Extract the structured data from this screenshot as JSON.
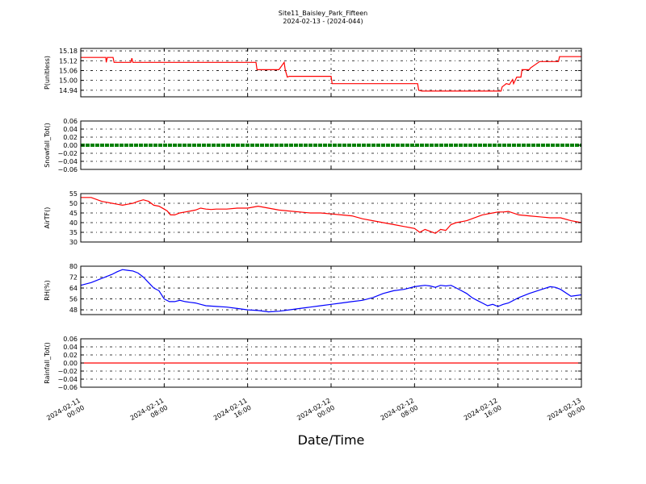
{
  "title_line1": "Site11_Baisley_Park_Fifteen",
  "title_line2": "2024-02-13 - (2024-044)",
  "xlabel": "Date/Time",
  "x_ticks": [
    [
      "2024-02-11",
      "00:00"
    ],
    [
      "2024-02-11",
      "08:00"
    ],
    [
      "2024-02-11",
      "16:00"
    ],
    [
      "2024-02-12",
      "00:00"
    ],
    [
      "2024-02-12",
      "08:00"
    ],
    [
      "2024-02-12",
      "16:00"
    ],
    [
      "2024-02-13",
      "00:00"
    ]
  ],
  "colors": {
    "red": "#ff0000",
    "green": "#008000",
    "blue": "#0000ff"
  },
  "chart_data": [
    {
      "type": "line",
      "ylabel": "P(unitless)",
      "ylim": [
        14.9,
        15.195
      ],
      "yticks": [
        "15.18",
        "15.12",
        "15.06",
        "15.00",
        "14.94"
      ],
      "ytick_values": [
        15.18,
        15.12,
        15.06,
        15.0,
        14.94
      ],
      "grid": true,
      "series": [
        {
          "color": "#ff0000",
          "x": [
            0,
            2.4,
            2.45,
            2.55,
            2.6,
            3.1,
            3.2,
            3.3,
            3.35,
            4.8,
            4.9,
            5.0,
            5.1,
            16.8,
            16.9,
            19.0,
            19.5,
            19.6,
            19.8,
            20.0,
            20.1,
            24.0,
            24.1,
            32.3,
            32.4,
            32.7,
            40.3,
            40.4,
            40.8,
            41.1,
            41.4,
            41.5,
            41.8,
            41.9,
            42.2,
            42.3,
            43.0,
            43.1,
            44.0,
            44.1,
            45.8,
            45.9,
            47.0,
            47.1,
            48.0
          ],
          "y": [
            15.14,
            15.14,
            15.11,
            15.14,
            15.14,
            15.14,
            15.11,
            15.11,
            15.11,
            15.11,
            15.135,
            15.11,
            15.11,
            15.11,
            15.065,
            15.065,
            15.11,
            15.065,
            15.02,
            15.025,
            15.025,
            15.025,
            14.98,
            14.98,
            14.94,
            14.935,
            14.935,
            14.96,
            14.98,
            14.975,
            15.005,
            14.98,
            15.02,
            15.02,
            15.02,
            15.065,
            15.065,
            15.075,
            15.115,
            15.115,
            15.115,
            15.145,
            15.145,
            15.145,
            15.145
          ]
        }
      ]
    },
    {
      "type": "line",
      "ylabel": "Snowfall_Tot()",
      "ylim": [
        -0.06,
        0.06
      ],
      "yticks": [
        "0.06",
        "0.04",
        "0.02",
        "0.00",
        "−0.02",
        "−0.04",
        "−0.06"
      ],
      "ytick_values": [
        0.06,
        0.04,
        0.02,
        0.0,
        -0.02,
        -0.04,
        -0.06
      ],
      "grid": true,
      "series": [
        {
          "color": "#008000",
          "x": [
            0,
            48
          ],
          "y": [
            0,
            0
          ]
        }
      ]
    },
    {
      "type": "line",
      "ylabel": "AirTF()",
      "ylim": [
        30,
        55
      ],
      "yticks": [
        "55",
        "50",
        "45",
        "40",
        "35",
        "30"
      ],
      "ytick_values": [
        55,
        50,
        45,
        40,
        35,
        30
      ],
      "grid": true,
      "series": [
        {
          "color": "#ff0000",
          "x": [
            0,
            1,
            2,
            3,
            3.5,
            4,
            4.5,
            5,
            5.5,
            6,
            6.5,
            7,
            7.5,
            8,
            8.3,
            8.6,
            9,
            9.5,
            10,
            10.5,
            11,
            11.5,
            12,
            12.5,
            13,
            14,
            15,
            16,
            17,
            18,
            19,
            20,
            21,
            22,
            23,
            24,
            25,
            26,
            27,
            28,
            29,
            30,
            31,
            32,
            32.5,
            33,
            33.5,
            34,
            34.5,
            35,
            35.5,
            36,
            36.5,
            37,
            37.5,
            38,
            38.5,
            39,
            39.5,
            40,
            40.5,
            41,
            42,
            43,
            44,
            45,
            46,
            47,
            48
          ],
          "y": [
            53,
            53,
            51,
            50,
            49.5,
            49,
            49.5,
            50,
            51,
            51.8,
            51,
            49,
            48.5,
            47,
            46,
            44,
            44,
            45,
            45.5,
            46,
            46.5,
            47.5,
            47,
            46.8,
            47,
            47,
            47.5,
            47.5,
            48.5,
            47.5,
            46.5,
            46,
            45.5,
            45,
            45,
            44.5,
            44,
            43.5,
            42,
            41,
            40,
            39,
            38,
            37,
            35,
            36.5,
            35.5,
            34.5,
            36.5,
            36,
            39,
            40,
            40.5,
            41,
            42,
            43,
            44,
            44.5,
            45,
            45.5,
            45.5,
            45.8,
            44,
            43.5,
            43,
            42.5,
            42.5,
            41,
            40
          ]
        }
      ]
    },
    {
      "type": "line",
      "ylabel": "RH(%)",
      "ylim": [
        44.5,
        80
      ],
      "yticks": [
        "80",
        "72",
        "64",
        "56",
        "48"
      ],
      "ytick_values": [
        80,
        72,
        64,
        56,
        48
      ],
      "grid": true,
      "series": [
        {
          "color": "#0000ff",
          "x": [
            0,
            1,
            2,
            3,
            3.5,
            4,
            4.5,
            5,
            5.5,
            6,
            6.5,
            7,
            7.5,
            8,
            8.5,
            9,
            9.5,
            10,
            10.5,
            11,
            11.5,
            12,
            13,
            14,
            15,
            16,
            17,
            18,
            19,
            20,
            21,
            22,
            23,
            24,
            25,
            26,
            27,
            28,
            29,
            30,
            31,
            32,
            32.5,
            33,
            33.5,
            34,
            34.5,
            35,
            35.5,
            36,
            36.5,
            37,
            37.5,
            38,
            38.5,
            39,
            39.5,
            40,
            40.5,
            41,
            42,
            43,
            44,
            45,
            45.5,
            46,
            47,
            48
          ],
          "y": [
            66,
            68,
            71,
            74,
            76,
            77.5,
            77,
            76.5,
            75,
            72,
            68,
            64,
            62,
            56,
            54,
            54,
            55,
            54,
            53.5,
            53,
            52,
            51,
            50.5,
            50,
            49,
            48,
            47.5,
            46.5,
            47,
            48,
            49,
            50,
            51,
            52,
            53,
            54,
            55,
            57,
            60,
            62,
            63,
            65,
            65.5,
            66,
            65.5,
            64.5,
            66,
            65.5,
            66,
            64,
            62,
            60,
            57,
            55,
            53,
            51,
            52,
            50.5,
            52,
            53,
            57,
            60,
            62.5,
            65,
            64.5,
            63,
            58,
            59
          ]
        }
      ]
    },
    {
      "type": "line",
      "ylabel": "Rainfall_Tot()",
      "ylim": [
        -0.06,
        0.06
      ],
      "yticks": [
        "0.06",
        "0.04",
        "0.02",
        "0.00",
        "−0.02",
        "−0.04",
        "−0.06"
      ],
      "ytick_values": [
        0.06,
        0.04,
        0.02,
        0.0,
        -0.02,
        -0.04,
        -0.06
      ],
      "grid": true,
      "series": [
        {
          "color": "#ff0000",
          "x": [
            0,
            48
          ],
          "y": [
            0,
            0
          ]
        }
      ]
    }
  ]
}
